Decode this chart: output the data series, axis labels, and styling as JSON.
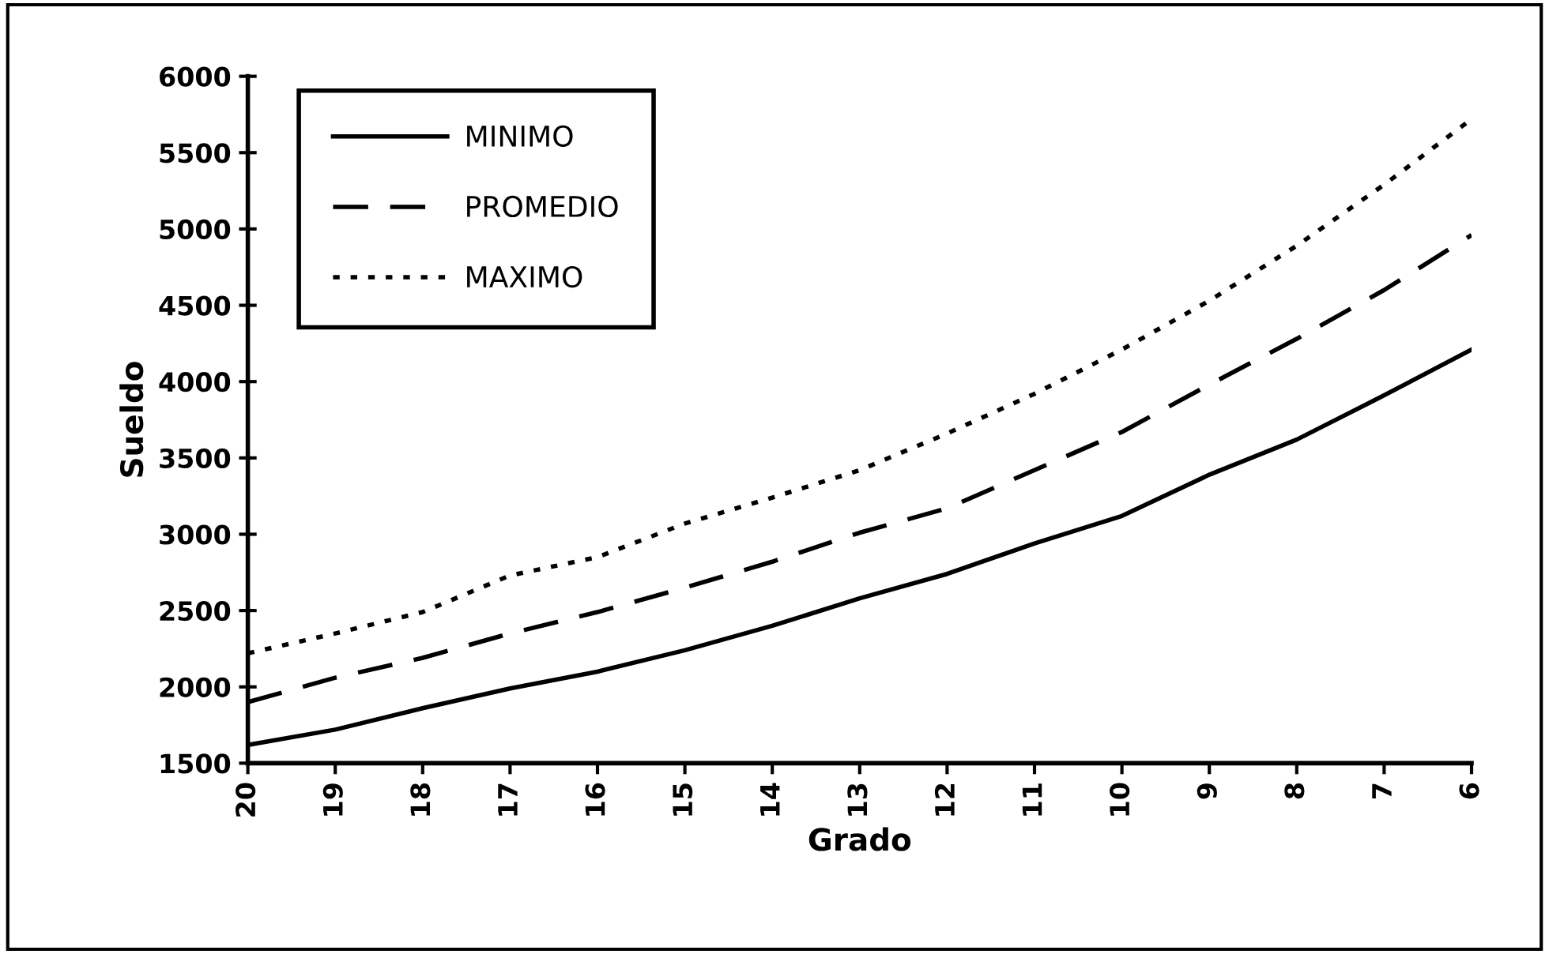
{
  "chart_data": {
    "type": "line",
    "xlabel": "Grado",
    "ylabel": "Sueldo",
    "categories": [
      "20",
      "19",
      "18",
      "17",
      "16",
      "15",
      "14",
      "13",
      "12",
      "11",
      "10",
      "9",
      "8",
      "7",
      "6"
    ],
    "series": [
      {
        "name": "MINIMO",
        "color": "#000000",
        "line_style": "solid",
        "values": [
          1620,
          1720,
          1860,
          1990,
          2100,
          2240,
          2400,
          2580,
          2740,
          2940,
          3120,
          3390,
          3620,
          3910,
          4210
        ]
      },
      {
        "name": "PROMEDIO",
        "color": "#000000",
        "line_style": "dashed",
        "values": [
          1900,
          2060,
          2190,
          2350,
          2490,
          2650,
          2820,
          3010,
          3170,
          3420,
          3670,
          3980,
          4280,
          4600,
          4960
        ]
      },
      {
        "name": "MAXIMO",
        "color": "#000000",
        "line_style": "dotted",
        "values": [
          2220,
          2350,
          2490,
          2730,
          2850,
          3070,
          3240,
          3420,
          3660,
          3920,
          4210,
          4530,
          4890,
          5290,
          5720
        ]
      }
    ],
    "ylim": [
      1500,
      6000
    ],
    "yticks": [
      1500,
      2000,
      2500,
      3000,
      3500,
      4000,
      4500,
      5000,
      5500,
      6000
    ],
    "grid": false,
    "legend": "top left",
    "marker": "none"
  }
}
